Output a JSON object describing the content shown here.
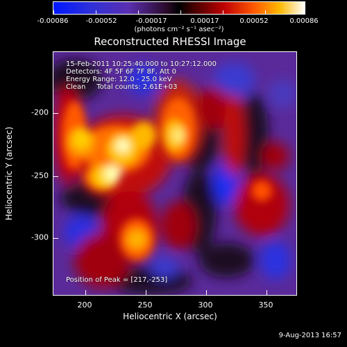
{
  "colorbar": {
    "tick_labels": [
      "-0.00086",
      "-0.00052",
      "-0.00017",
      "0.00017",
      "0.00052",
      "0.00086"
    ],
    "units": "(photons cm⁻² s⁻¹ asec⁻²)"
  },
  "title": "Reconstructed RHESSI Image",
  "annotations": {
    "line1": "15-Feb-2011 10:25:40.000 to 10:27:12.000",
    "line2": "Detectors: 4F 5F 6F 7F 8F, Att 0",
    "line3": "Energy Range: 12.0 - 25.0 keV",
    "line4": "Clean     Total counts: 2.61E+03",
    "peak": "Position of Peak = [217,-253]"
  },
  "axes": {
    "x_label": "Heliocentric X (arcsec)",
    "y_label": "Heliocentric Y (arcsec)",
    "x_ticks": [
      "200",
      "250",
      "300",
      "350"
    ],
    "y_ticks": [
      "-200",
      "-250",
      "-300"
    ]
  },
  "footer": {
    "date": "9-Aug-2013 16:57"
  }
}
